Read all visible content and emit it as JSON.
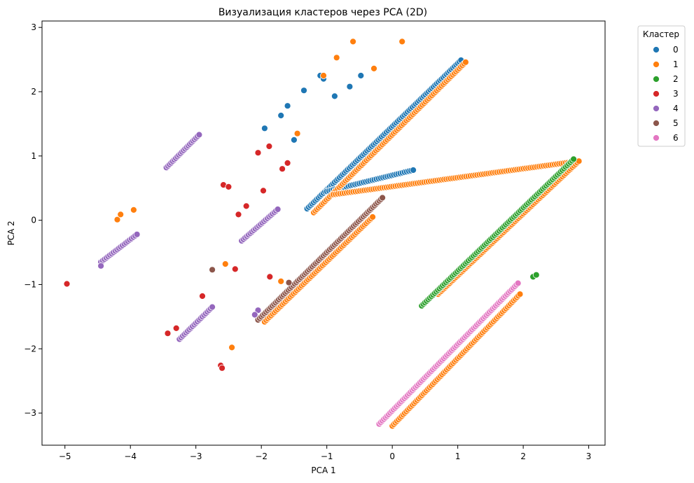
{
  "chart_data": {
    "type": "scatter",
    "title": "Визуализация кластеров через PCA (2D)",
    "xlabel": "PCA 1",
    "ylabel": "PCA 2",
    "xlim": [
      -5.35,
      3.25
    ],
    "ylim": [
      -3.5,
      3.1
    ],
    "xticks": [
      -5,
      -4,
      -3,
      -2,
      -1,
      0,
      1,
      2,
      3
    ],
    "yticks": [
      -3,
      -2,
      -1,
      0,
      1,
      2,
      3
    ],
    "tick_labels_x": [
      "−5",
      "−4",
      "−3",
      "−2",
      "−1",
      "0",
      "1",
      "2",
      "3"
    ],
    "tick_labels_y": [
      "−3",
      "−2",
      "−1",
      "0",
      "1",
      "2",
      "3"
    ],
    "grid": false,
    "legend": {
      "title": "Кластер",
      "placement": "outside-upper-right"
    },
    "series": [
      {
        "name": "0",
        "color": "#1f77b4",
        "segments": [
          [
            -1.3,
            0.18,
            1.05,
            2.49
          ],
          [
            -1.0,
            0.45,
            0.32,
            0.78
          ]
        ],
        "points": [
          [
            -1.1,
            2.25
          ],
          [
            -1.05,
            2.2
          ],
          [
            -0.88,
            1.93
          ],
          [
            -0.65,
            2.08
          ],
          [
            -0.48,
            2.25
          ],
          [
            -1.5,
            1.25
          ],
          [
            -1.95,
            1.43
          ],
          [
            -1.7,
            1.63
          ],
          [
            -1.6,
            1.78
          ],
          [
            -1.35,
            2.02
          ]
        ]
      },
      {
        "name": "1",
        "color": "#ff7f0e",
        "segments": [
          [
            -1.2,
            0.12,
            1.12,
            2.46
          ],
          [
            -0.9,
            0.4,
            2.85,
            0.92
          ],
          [
            -1.95,
            -1.58,
            -0.3,
            0.05
          ],
          [
            0.0,
            -3.2,
            1.95,
            -1.15
          ],
          [
            0.7,
            -1.15,
            2.85,
            0.92
          ]
        ],
        "points": [
          [
            -0.6,
            2.78
          ],
          [
            0.15,
            2.78
          ],
          [
            -0.85,
            2.53
          ],
          [
            -0.28,
            2.36
          ],
          [
            -4.2,
            0.01
          ],
          [
            -4.15,
            0.09
          ],
          [
            -3.95,
            0.16
          ],
          [
            -2.55,
            -0.68
          ],
          [
            -1.7,
            -0.95
          ],
          [
            -2.45,
            -1.98
          ],
          [
            -1.45,
            1.35
          ],
          [
            -1.05,
            2.25
          ]
        ]
      },
      {
        "name": "2",
        "color": "#2ca02c",
        "segments": [
          [
            0.45,
            -1.33,
            2.77,
            0.95
          ]
        ],
        "points": [
          [
            2.15,
            -0.88
          ],
          [
            2.2,
            -0.85
          ]
        ]
      },
      {
        "name": "3",
        "color": "#d62728",
        "points": [
          [
            -4.97,
            -0.99
          ],
          [
            -3.43,
            -1.76
          ],
          [
            -3.3,
            -1.68
          ],
          [
            -2.9,
            -1.18
          ],
          [
            -2.62,
            -2.26
          ],
          [
            -2.6,
            -2.3
          ],
          [
            -2.58,
            0.55
          ],
          [
            -2.5,
            0.52
          ],
          [
            -2.4,
            -0.76
          ],
          [
            -2.35,
            0.09
          ],
          [
            -2.23,
            0.22
          ],
          [
            -2.05,
            1.05
          ],
          [
            -1.97,
            0.46
          ],
          [
            -1.88,
            1.15
          ],
          [
            -1.87,
            -0.88
          ],
          [
            -1.68,
            0.8
          ],
          [
            -1.6,
            0.89
          ]
        ]
      },
      {
        "name": "4",
        "color": "#9467bd",
        "segments": [
          [
            -4.45,
            -0.65,
            -3.9,
            -0.22
          ],
          [
            -3.45,
            0.82,
            -2.95,
            1.33
          ],
          [
            -3.25,
            -1.85,
            -2.75,
            -1.35
          ],
          [
            -2.3,
            -0.32,
            -1.75,
            0.17
          ]
        ],
        "points": [
          [
            -4.45,
            -0.71
          ],
          [
            -2.05,
            -1.4
          ],
          [
            -2.1,
            -1.47
          ]
        ]
      },
      {
        "name": "5",
        "color": "#8c564b",
        "segments": [
          [
            -2.05,
            -1.55,
            -0.15,
            0.35
          ]
        ],
        "points": [
          [
            -2.75,
            -0.77
          ],
          [
            -1.58,
            -0.97
          ]
        ]
      },
      {
        "name": "6",
        "color": "#e377c2",
        "segments": [
          [
            -0.2,
            -3.17,
            1.92,
            -0.98
          ]
        ]
      }
    ]
  }
}
